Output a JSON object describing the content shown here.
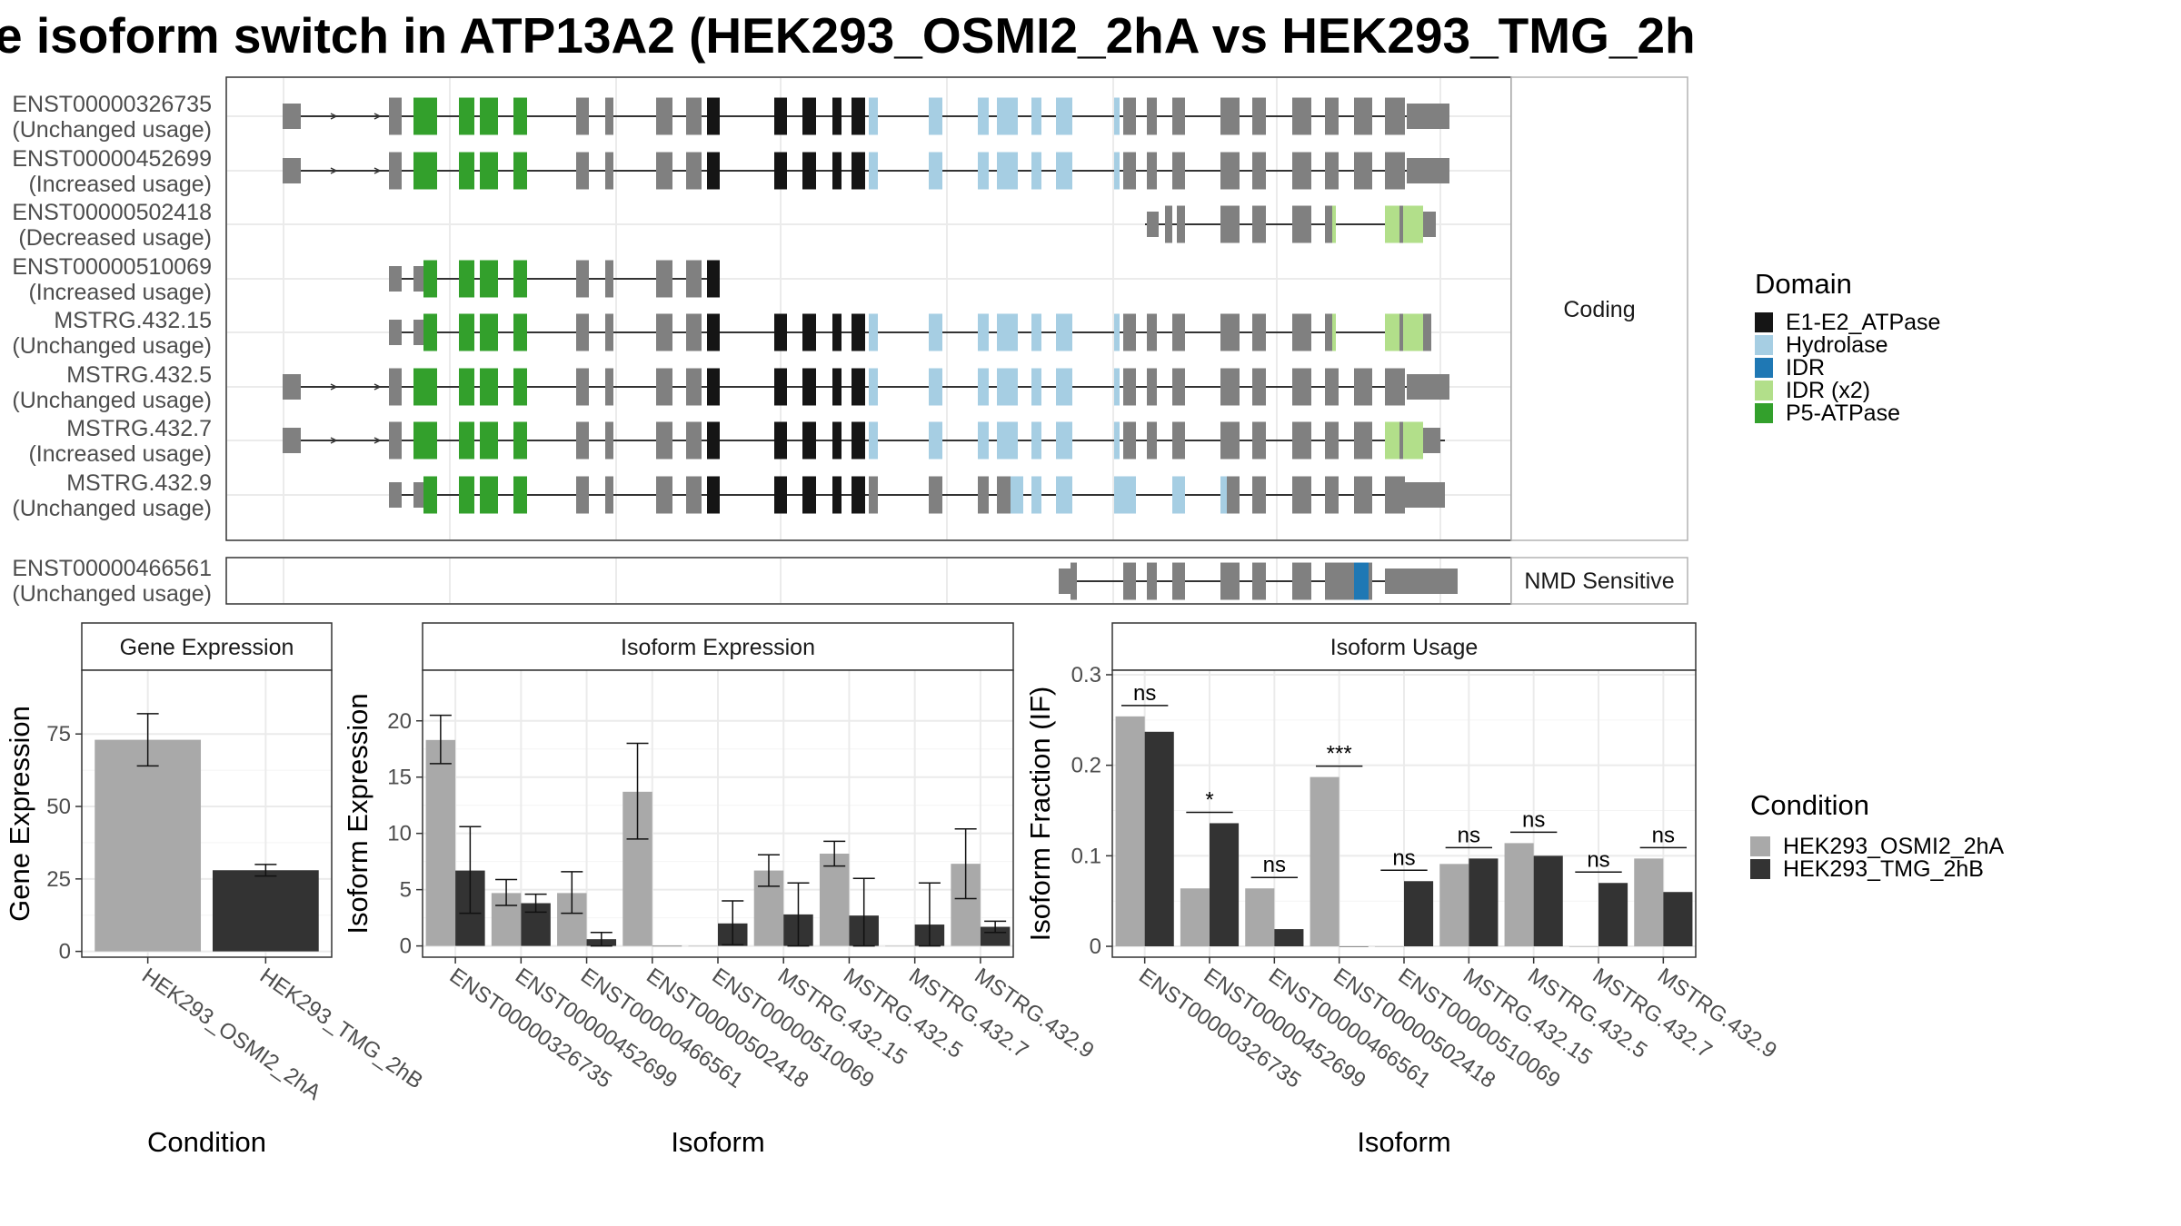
{
  "title": "e isoform switch in ATP13A2 (HEK293_OSMI2_2hA vs HEK293_TMG_2h",
  "structure": {
    "facet_coding": "Coding",
    "facet_nmd": "NMD Sensitive",
    "transcripts": [
      {
        "id": "ENST00000326735",
        "usage": "(Unchanged usage)"
      },
      {
        "id": "ENST00000452699",
        "usage": "(Increased usage)"
      },
      {
        "id": "ENST00000502418",
        "usage": "(Decreased usage)"
      },
      {
        "id": "ENST00000510069",
        "usage": "(Increased usage)"
      },
      {
        "id": "MSTRG.432.15",
        "usage": "(Unchanged usage)"
      },
      {
        "id": "MSTRG.432.5",
        "usage": "(Unchanged usage)"
      },
      {
        "id": "MSTRG.432.7",
        "usage": "(Increased usage)"
      },
      {
        "id": "MSTRG.432.9",
        "usage": "(Unchanged usage)"
      }
    ],
    "nmd_transcripts": [
      {
        "id": "ENST00000466561",
        "usage": "(Unchanged usage)"
      }
    ]
  },
  "legend_domain": {
    "title": "Domain",
    "items": [
      {
        "label": "E1-E2_ATPase",
        "color": "#151515"
      },
      {
        "label": "Hydrolase",
        "color": "#a6cee3"
      },
      {
        "label": "IDR",
        "color": "#1f78b4"
      },
      {
        "label": "IDR (x2)",
        "color": "#b2df8a"
      },
      {
        "label": "P5-ATPase",
        "color": "#33a02c"
      }
    ]
  },
  "legend_condition": {
    "title": "Condition",
    "items": [
      {
        "label": "HEK293_OSMI2_2hA",
        "color": "#a9a9a9"
      },
      {
        "label": "HEK293_TMG_2hB",
        "color": "#333333"
      }
    ]
  },
  "chart_data": [
    {
      "type": "bar",
      "title": "Gene Expression",
      "xlabel": "Condition",
      "ylabel": "Gene Expression",
      "categories": [
        "HEK293_OSMI2_2hA",
        "HEK293_TMG_2hB"
      ],
      "values": [
        73,
        28
      ],
      "error": [
        [
          64,
          82
        ],
        [
          26,
          30
        ]
      ],
      "colors": [
        "#a9a9a9",
        "#333333"
      ],
      "ylim": [
        -2,
        97
      ],
      "yticks": [
        0,
        25,
        50,
        75
      ]
    },
    {
      "type": "bar",
      "title": "Isoform Expression",
      "xlabel": "Isoform",
      "ylabel": "Isoform Expression",
      "categories": [
        "ENST00000326735",
        "ENST00000452699",
        "ENST00000466561",
        "ENST00000502418",
        "ENST00000510069",
        "MSTRG.432.15",
        "MSTRG.432.5",
        "MSTRG.432.7",
        "MSTRG.432.9"
      ],
      "series": [
        {
          "name": "HEK293_OSMI2_2hA",
          "values": [
            18.3,
            4.7,
            4.7,
            13.7,
            0.0,
            6.7,
            8.2,
            0.0,
            7.3
          ],
          "error": [
            [
              16.2,
              20.5
            ],
            [
              3.6,
              5.9
            ],
            [
              2.9,
              6.6
            ],
            [
              9.5,
              18.0
            ],
            null,
            [
              5.3,
              8.1
            ],
            [
              7.1,
              9.3
            ],
            null,
            [
              4.2,
              10.4
            ]
          ]
        },
        {
          "name": "HEK293_TMG_2hB",
          "values": [
            6.7,
            3.8,
            0.6,
            0.0,
            2.0,
            2.8,
            2.7,
            1.9,
            1.7
          ],
          "error": [
            [
              2.9,
              10.6
            ],
            [
              3.0,
              4.6
            ],
            [
              0.0,
              1.2
            ],
            null,
            [
              0.1,
              4.0
            ],
            [
              0.0,
              5.6
            ],
            [
              0.0,
              6.0
            ],
            [
              0.0,
              5.6
            ],
            [
              1.2,
              2.2
            ]
          ]
        }
      ],
      "colors": [
        "#a9a9a9",
        "#333333"
      ],
      "ylim": [
        -1,
        24.5
      ],
      "yticks": [
        0,
        5,
        10,
        15,
        20
      ]
    },
    {
      "type": "bar",
      "title": "Isoform Usage",
      "xlabel": "Isoform",
      "ylabel": "Isoform Fraction (IF)",
      "categories": [
        "ENST00000326735",
        "ENST00000452699",
        "ENST00000466561",
        "ENST00000502418",
        "ENST00000510069",
        "MSTRG.432.15",
        "MSTRG.432.5",
        "MSTRG.432.7",
        "MSTRG.432.9"
      ],
      "series": [
        {
          "name": "HEK293_OSMI2_2hA",
          "values": [
            0.254,
            0.064,
            0.064,
            0.187,
            0.0,
            0.091,
            0.114,
            0.0,
            0.097
          ]
        },
        {
          "name": "HEK293_TMG_2hB",
          "values": [
            0.237,
            0.136,
            0.019,
            0.0,
            0.072,
            0.097,
            0.1,
            0.07,
            0.06
          ]
        }
      ],
      "significance": [
        "ns",
        "*",
        "ns",
        "***",
        "ns",
        "ns",
        "ns",
        "ns",
        "ns"
      ],
      "colors": [
        "#a9a9a9",
        "#333333"
      ],
      "ylim": [
        -0.012,
        0.305
      ],
      "yticks": [
        0.0,
        0.1,
        0.2,
        0.3
      ]
    }
  ]
}
